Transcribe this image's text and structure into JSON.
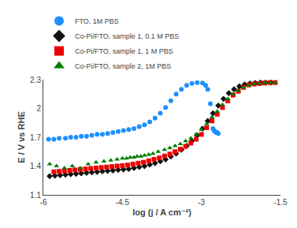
{
  "chart_data": {
    "type": "scatter",
    "xlabel": "log (j / A cm⁻²)",
    "ylabel": "E / V vs RHE",
    "xlim": [
      -6,
      -1.5
    ],
    "ylim": [
      1.1,
      2.3
    ],
    "xticks": [
      -6,
      -4.5,
      -3,
      -1.5
    ],
    "yticks": [
      1.1,
      1.4,
      1.7,
      2,
      2.3
    ],
    "grid": false,
    "legend": "upper left",
    "series": [
      {
        "name": "FTO, 1M PBS",
        "color": "#1E90FF",
        "marker": "circle",
        "x": [
          -5.9,
          -5.8,
          -5.7,
          -5.58,
          -5.48,
          -5.38,
          -5.28,
          -5.18,
          -5.08,
          -4.98,
          -4.88,
          -4.78,
          -4.68,
          -4.58,
          -4.48,
          -4.38,
          -4.28,
          -4.18,
          -4.08,
          -3.98,
          -3.88,
          -3.78,
          -3.68,
          -3.58,
          -3.48,
          -3.38,
          -3.28,
          -3.18,
          -3.08,
          -2.98,
          -2.92,
          -2.88,
          -2.83,
          -2.8,
          -2.78,
          -2.76,
          -2.74,
          -2.72,
          -2.7,
          -2.68
        ],
        "values": [
          1.68,
          1.68,
          1.69,
          1.69,
          1.7,
          1.7,
          1.71,
          1.71,
          1.72,
          1.73,
          1.73,
          1.74,
          1.75,
          1.76,
          1.77,
          1.78,
          1.79,
          1.81,
          1.83,
          1.86,
          1.9,
          1.95,
          2.01,
          2.08,
          2.15,
          2.2,
          2.24,
          2.26,
          2.27,
          2.265,
          2.24,
          2.2,
          2.05,
          1.88,
          1.79,
          1.77,
          1.76,
          1.75,
          1.75,
          1.74
        ]
      },
      {
        "name": "Co-Pi/FTO, sample 1, 0.1 M PBS",
        "color": "#111111",
        "marker": "diamond",
        "x": [
          -5.88,
          -5.78,
          -5.68,
          -5.58,
          -5.48,
          -5.38,
          -5.28,
          -5.18,
          -5.08,
          -4.98,
          -4.88,
          -4.78,
          -4.68,
          -4.58,
          -4.48,
          -4.38,
          -4.28,
          -4.18,
          -4.08,
          -3.98,
          -3.88,
          -3.78,
          -3.68,
          -3.58,
          -3.48,
          -3.38,
          -3.28,
          -3.18,
          -3.08,
          -2.98,
          -2.88,
          -2.78,
          -2.68,
          -2.58,
          -2.48,
          -2.38,
          -2.28,
          -2.18,
          -2.08,
          -1.98,
          -1.88,
          -1.78,
          -1.68
        ],
        "values": [
          1.295,
          1.3,
          1.305,
          1.31,
          1.315,
          1.32,
          1.325,
          1.33,
          1.335,
          1.34,
          1.345,
          1.35,
          1.355,
          1.36,
          1.365,
          1.37,
          1.38,
          1.39,
          1.4,
          1.415,
          1.43,
          1.45,
          1.47,
          1.5,
          1.53,
          1.57,
          1.61,
          1.66,
          1.72,
          1.79,
          1.87,
          1.95,
          2.03,
          2.1,
          2.16,
          2.2,
          2.23,
          2.25,
          2.26,
          2.265,
          2.27,
          2.27,
          2.27
        ]
      },
      {
        "name": "Co-Pi/FTO, sample 1, 1 M PBS",
        "color": "#EE0000",
        "marker": "square",
        "x": [
          -5.8,
          -5.7,
          -5.6,
          -5.5,
          -5.4,
          -5.3,
          -5.2,
          -5.1,
          -5.0,
          -4.9,
          -4.8,
          -4.7,
          -4.6,
          -4.5,
          -4.4,
          -4.3,
          -4.2,
          -4.1,
          -4.0,
          -3.9,
          -3.8,
          -3.7,
          -3.6,
          -3.5,
          -3.4,
          -3.3,
          -3.2,
          -3.1,
          -3.0,
          -2.9,
          -2.8,
          -2.7,
          -2.6,
          -2.5,
          -2.4,
          -2.3,
          -2.2,
          -2.1,
          -2.0,
          -1.9,
          -1.8,
          -1.7,
          -1.6
        ],
        "values": [
          1.34,
          1.345,
          1.35,
          1.355,
          1.36,
          1.365,
          1.37,
          1.375,
          1.38,
          1.385,
          1.39,
          1.395,
          1.4,
          1.405,
          1.41,
          1.42,
          1.43,
          1.44,
          1.455,
          1.47,
          1.485,
          1.505,
          1.525,
          1.55,
          1.575,
          1.605,
          1.64,
          1.68,
          1.73,
          1.8,
          1.87,
          1.94,
          2.01,
          2.08,
          2.14,
          2.18,
          2.22,
          2.245,
          2.255,
          2.26,
          2.265,
          2.27,
          2.27
        ]
      },
      {
        "name": "Co-Pi/FTO, sample 2, 1M PBS",
        "color": "#008000",
        "marker": "triangle-up",
        "x": [
          -5.88,
          -5.75,
          -5.6,
          -5.45,
          -5.3,
          -5.15,
          -5.0,
          -4.85,
          -4.72,
          -4.6,
          -4.5,
          -4.42,
          -4.35,
          -4.28,
          -4.22,
          -4.15,
          -4.08,
          -4.0,
          -3.92,
          -3.82,
          -3.7,
          -3.6,
          -3.5,
          -3.4,
          -3.3,
          -3.2,
          -3.1,
          -3.0,
          -2.9,
          -2.8,
          -2.7,
          -2.6,
          -2.5,
          -2.4,
          -2.3,
          -2.2,
          -2.1,
          -2.0,
          -1.9,
          -1.8,
          -1.7,
          -1.6
        ],
        "values": [
          1.42,
          1.4,
          1.38,
          1.4,
          1.38,
          1.42,
          1.44,
          1.45,
          1.46,
          1.47,
          1.48,
          1.48,
          1.49,
          1.49,
          1.5,
          1.5,
          1.51,
          1.52,
          1.53,
          1.55,
          1.57,
          1.59,
          1.61,
          1.63,
          1.66,
          1.69,
          1.73,
          1.78,
          1.84,
          1.91,
          1.97,
          2.04,
          2.1,
          2.15,
          2.19,
          2.22,
          2.24,
          2.255,
          2.26,
          2.265,
          2.27,
          2.27
        ]
      }
    ]
  }
}
